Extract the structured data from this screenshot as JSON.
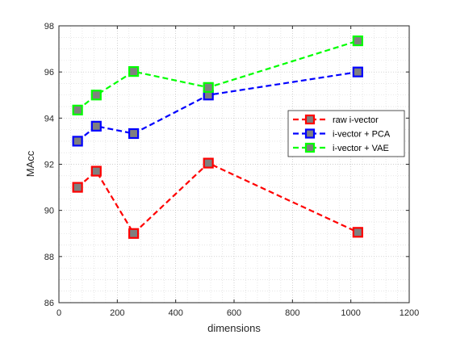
{
  "chart_data": {
    "type": "line",
    "title": "",
    "xlabel": "dimensions",
    "ylabel": "MAcc",
    "xlim": [
      0,
      1200
    ],
    "ylim": [
      86,
      98
    ],
    "xticks": [
      "0",
      "200",
      "400",
      "600",
      "800",
      "1000",
      "1200"
    ],
    "yticks": [
      "86",
      "88",
      "90",
      "92",
      "94",
      "96",
      "98"
    ],
    "grid": "on (major and minor, dotted)",
    "legend_position": "right",
    "line_style": "dashed",
    "marker": "square, grey fill",
    "series": [
      {
        "name": "raw i-vector",
        "color": "#ff0000",
        "x": [
          64,
          128,
          256,
          512,
          1024
        ],
        "values": [
          91.0,
          91.7,
          89.0,
          92.05,
          89.05
        ]
      },
      {
        "name": "i-vector + PCA",
        "color": "#0000ff",
        "x": [
          64,
          128,
          256,
          512,
          1024
        ],
        "values": [
          93.0,
          93.65,
          93.33,
          95.0,
          96.0
        ]
      },
      {
        "name": "i-vector + VAE",
        "color": "#00ff00",
        "x": [
          64,
          128,
          256,
          512,
          1024
        ],
        "values": [
          94.35,
          95.0,
          96.02,
          95.33,
          97.35
        ]
      }
    ]
  }
}
